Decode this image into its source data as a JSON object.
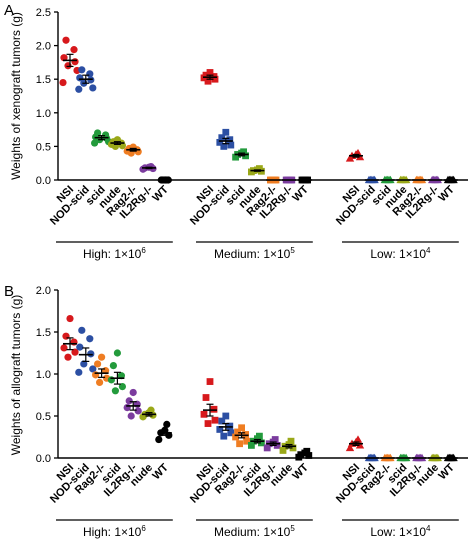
{
  "chart_data": [
    {
      "panel_label": "A",
      "type": "scatter",
      "ylabel": "Weights of xenograft tumors (g)",
      "ylim": [
        0,
        2.5
      ],
      "yticks": [
        "0.0",
        "0.5",
        "1.0",
        "1.5",
        "2.0",
        "2.5"
      ],
      "groups": [
        {
          "label_main": "High: 1×10",
          "label_exp": "6",
          "categories": [
            {
              "name": "NSI",
              "color": "#d7191c",
              "marker": "circle",
              "mean": 1.78,
              "sem": 0.09,
              "points": [
                2.08,
                1.94,
                1.82,
                1.76,
                1.7,
                1.63,
                1.45
              ]
            },
            {
              "name": "NOD-scid",
              "color": "#2c4fa3",
              "marker": "circle",
              "mean": 1.5,
              "sem": 0.06,
              "points": [
                1.64,
                1.58,
                1.52,
                1.49,
                1.44,
                1.37,
                1.35
              ]
            },
            {
              "name": "scid",
              "color": "#239b3c",
              "marker": "circle",
              "mean": 0.63,
              "sem": 0.03,
              "points": [
                0.7,
                0.67,
                0.64,
                0.62,
                0.6,
                0.57,
                0.55
              ]
            },
            {
              "name": "nude",
              "color": "#9aa818",
              "marker": "circle",
              "mean": 0.55,
              "sem": 0.02,
              "points": [
                0.6,
                0.57,
                0.55,
                0.53,
                0.51,
                0.5
              ]
            },
            {
              "name": "Rag2-/-",
              "color": "#ef7d22",
              "marker": "circle",
              "mean": 0.45,
              "sem": 0.02,
              "points": [
                0.49,
                0.47,
                0.45,
                0.43,
                0.42,
                0.4
              ]
            },
            {
              "name": "IL2Rg-/-",
              "color": "#7b3c9e",
              "marker": "circle",
              "mean": 0.18,
              "sem": 0.01,
              "points": [
                0.2,
                0.19,
                0.18,
                0.17,
                0.16
              ]
            },
            {
              "name": "WT",
              "color": "#000000",
              "marker": "circle",
              "mean": 0.0,
              "sem": 0.0,
              "points": [
                0,
                0,
                0,
                0,
                0,
                0
              ]
            }
          ]
        },
        {
          "label_main": "Medium: 1×10",
          "label_exp": "5",
          "categories": [
            {
              "name": "NSI",
              "color": "#d7191c",
              "marker": "square",
              "mean": 1.53,
              "sem": 0.03,
              "points": [
                1.6,
                1.56,
                1.54,
                1.52,
                1.5,
                1.47
              ]
            },
            {
              "name": "NOD-scid",
              "color": "#2c4fa3",
              "marker": "square",
              "mean": 0.58,
              "sem": 0.04,
              "points": [
                0.71,
                0.63,
                0.6,
                0.56,
                0.52,
                0.5
              ]
            },
            {
              "name": "scid",
              "color": "#239b3c",
              "marker": "square",
              "mean": 0.38,
              "sem": 0.02,
              "points": [
                0.42,
                0.4,
                0.38,
                0.36,
                0.34
              ]
            },
            {
              "name": "nude",
              "color": "#9aa818",
              "marker": "square",
              "mean": 0.14,
              "sem": 0.01,
              "points": [
                0.17,
                0.15,
                0.14,
                0.13,
                0.12
              ]
            },
            {
              "name": "Rag2-/-",
              "color": "#ef7d22",
              "marker": "square",
              "mean": 0.0,
              "sem": 0.0,
              "points": [
                0,
                0,
                0,
                0,
                0
              ]
            },
            {
              "name": "IL2Rg-/-",
              "color": "#7b3c9e",
              "marker": "square",
              "mean": 0.0,
              "sem": 0.0,
              "points": [
                0,
                0,
                0,
                0,
                0
              ]
            },
            {
              "name": "WT",
              "color": "#000000",
              "marker": "square",
              "mean": 0.0,
              "sem": 0.0,
              "points": [
                0,
                0,
                0,
                0,
                0
              ]
            }
          ]
        },
        {
          "label_main": "Low: 1×10",
          "label_exp": "4",
          "categories": [
            {
              "name": "NSI",
              "color": "#d7191c",
              "marker": "triangle",
              "mean": 0.36,
              "sem": 0.02,
              "points": [
                0.4,
                0.38,
                0.36,
                0.34,
                0.32
              ]
            },
            {
              "name": "NOD-scid",
              "color": "#2c4fa3",
              "marker": "triangle",
              "mean": 0.0,
              "sem": 0.0,
              "points": [
                0,
                0,
                0,
                0,
                0
              ]
            },
            {
              "name": "scid",
              "color": "#239b3c",
              "marker": "triangle",
              "mean": 0.0,
              "sem": 0.0,
              "points": [
                0,
                0,
                0,
                0,
                0
              ]
            },
            {
              "name": "nude",
              "color": "#9aa818",
              "marker": "triangle",
              "mean": 0.0,
              "sem": 0.0,
              "points": [
                0,
                0,
                0,
                0,
                0
              ]
            },
            {
              "name": "Rag2-/-",
              "color": "#ef7d22",
              "marker": "triangle",
              "mean": 0.0,
              "sem": 0.0,
              "points": [
                0,
                0,
                0,
                0,
                0
              ]
            },
            {
              "name": "IL2Rg-/-",
              "color": "#7b3c9e",
              "marker": "triangle",
              "mean": 0.0,
              "sem": 0.0,
              "points": [
                0,
                0,
                0,
                0,
                0
              ]
            },
            {
              "name": "WT",
              "color": "#000000",
              "marker": "triangle",
              "mean": 0.0,
              "sem": 0.0,
              "points": [
                0,
                0,
                0,
                0,
                0
              ]
            }
          ]
        }
      ]
    },
    {
      "panel_label": "B",
      "type": "scatter",
      "ylabel": "Weights of allograft tumors (g)",
      "ylim": [
        0,
        2.0
      ],
      "yticks": [
        "0.0",
        "0.5",
        "1.0",
        "1.5",
        "2.0"
      ],
      "groups": [
        {
          "label_main": "High: 1×10",
          "label_exp": "6",
          "categories": [
            {
              "name": "NSI",
              "color": "#d7191c",
              "marker": "circle",
              "mean": 1.36,
              "sem": 0.07,
              "points": [
                1.66,
                1.45,
                1.38,
                1.31,
                1.26,
                1.2
              ]
            },
            {
              "name": "NOD-scid",
              "color": "#2c4fa3",
              "marker": "circle",
              "mean": 1.23,
              "sem": 0.08,
              "points": [
                1.52,
                1.42,
                1.32,
                1.24,
                1.12,
                1.06,
                1.02
              ]
            },
            {
              "name": "Rag2-/-",
              "color": "#ef7d22",
              "marker": "circle",
              "mean": 1.01,
              "sem": 0.05,
              "points": [
                1.2,
                1.12,
                1.04,
                0.99,
                0.95,
                0.9
              ]
            },
            {
              "name": "scid",
              "color": "#239b3c",
              "marker": "circle",
              "mean": 0.95,
              "sem": 0.07,
              "points": [
                1.25,
                1.1,
                0.98,
                0.93,
                0.85,
                0.8
              ]
            },
            {
              "name": "IL2Rg-/-",
              "color": "#7b3c9e",
              "marker": "circle",
              "mean": 0.62,
              "sem": 0.05,
              "points": [
                0.78,
                0.68,
                0.64,
                0.6,
                0.56,
                0.5
              ]
            },
            {
              "name": "nude",
              "color": "#9aa818",
              "marker": "circle",
              "mean": 0.52,
              "sem": 0.02,
              "points": [
                0.57,
                0.54,
                0.52,
                0.51,
                0.49
              ]
            },
            {
              "name": "WT",
              "color": "#000000",
              "marker": "circle",
              "mean": 0.3,
              "sem": 0.03,
              "points": [
                0.4,
                0.33,
                0.3,
                0.27,
                0.22
              ]
            }
          ]
        },
        {
          "label_main": "Medium: 1×10",
          "label_exp": "5",
          "categories": [
            {
              "name": "NSI",
              "color": "#d7191c",
              "marker": "square",
              "mean": 0.57,
              "sem": 0.07,
              "points": [
                0.91,
                0.72,
                0.58,
                0.52,
                0.45,
                0.41
              ]
            },
            {
              "name": "NOD-scid",
              "color": "#2c4fa3",
              "marker": "square",
              "mean": 0.37,
              "sem": 0.04,
              "points": [
                0.5,
                0.44,
                0.38,
                0.34,
                0.3,
                0.26
              ]
            },
            {
              "name": "Rag2-/-",
              "color": "#ef7d22",
              "marker": "square",
              "mean": 0.27,
              "sem": 0.03,
              "points": [
                0.36,
                0.31,
                0.28,
                0.25,
                0.2,
                0.17
              ]
            },
            {
              "name": "scid",
              "color": "#239b3c",
              "marker": "square",
              "mean": 0.2,
              "sem": 0.02,
              "points": [
                0.26,
                0.23,
                0.2,
                0.18,
                0.15
              ]
            },
            {
              "name": "IL2Rg-/-",
              "color": "#7b3c9e",
              "marker": "square",
              "mean": 0.17,
              "sem": 0.02,
              "points": [
                0.22,
                0.19,
                0.17,
                0.15,
                0.12
              ]
            },
            {
              "name": "nude",
              "color": "#9aa818",
              "marker": "square",
              "mean": 0.14,
              "sem": 0.02,
              "points": [
                0.2,
                0.16,
                0.14,
                0.12,
                0.09
              ]
            },
            {
              "name": "WT",
              "color": "#000000",
              "marker": "square",
              "mean": 0.04,
              "sem": 0.01,
              "points": [
                0.08,
                0.06,
                0.04,
                0.03,
                0.01
              ]
            }
          ]
        },
        {
          "label_main": "Low: 1×10",
          "label_exp": "4",
          "categories": [
            {
              "name": "NSI",
              "color": "#d7191c",
              "marker": "triangle",
              "mean": 0.17,
              "sem": 0.02,
              "points": [
                0.22,
                0.19,
                0.17,
                0.15,
                0.12
              ]
            },
            {
              "name": "NOD-scid",
              "color": "#2c4fa3",
              "marker": "triangle",
              "mean": 0.0,
              "sem": 0.0,
              "points": [
                0,
                0,
                0,
                0,
                0
              ]
            },
            {
              "name": "Rag2-/-",
              "color": "#ef7d22",
              "marker": "triangle",
              "mean": 0.0,
              "sem": 0.0,
              "points": [
                0,
                0,
                0,
                0,
                0
              ]
            },
            {
              "name": "scid",
              "color": "#239b3c",
              "marker": "triangle",
              "mean": 0.0,
              "sem": 0.0,
              "points": [
                0,
                0,
                0,
                0,
                0
              ]
            },
            {
              "name": "IL2Rg-/-",
              "color": "#7b3c9e",
              "marker": "triangle",
              "mean": 0.0,
              "sem": 0.0,
              "points": [
                0,
                0,
                0,
                0,
                0
              ]
            },
            {
              "name": "nude",
              "color": "#9aa818",
              "marker": "triangle",
              "mean": 0.0,
              "sem": 0.0,
              "points": [
                0,
                0,
                0,
                0,
                0
              ]
            },
            {
              "name": "WT",
              "color": "#000000",
              "marker": "triangle",
              "mean": 0.0,
              "sem": 0.0,
              "points": [
                0,
                0,
                0,
                0,
                0
              ]
            }
          ]
        }
      ]
    }
  ]
}
